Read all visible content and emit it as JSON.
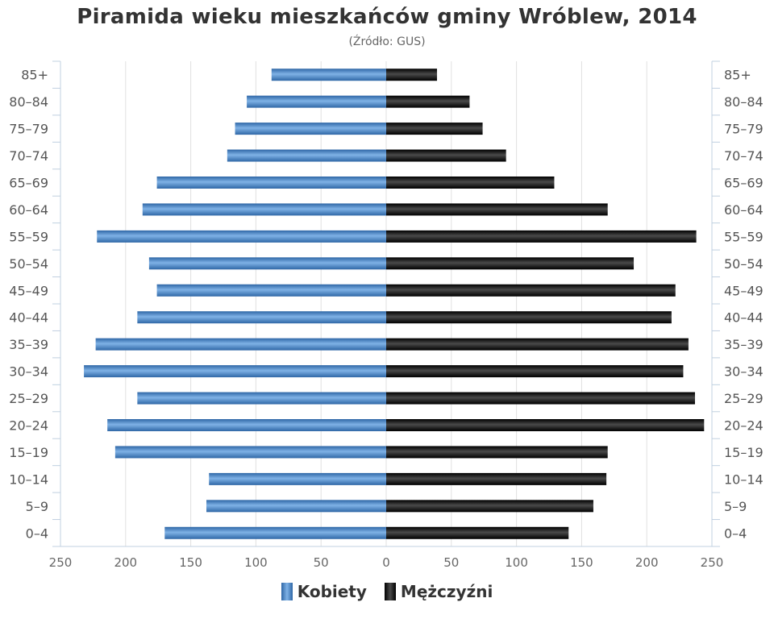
{
  "chart_data": {
    "type": "bar",
    "orientation": "horizontal",
    "title": "Piramida wieku mieszkańców gminy Wróblew, 2014",
    "subtitle": "(Źródło: GUS)",
    "categories": [
      "0–4",
      "5–9",
      "10–14",
      "15–19",
      "20–24",
      "25–29",
      "30–34",
      "35–39",
      "40–44",
      "45–49",
      "50–54",
      "55–59",
      "60–64",
      "65–69",
      "70–74",
      "75–79",
      "80–84",
      "85+"
    ],
    "series": [
      {
        "name": "Kobiety",
        "color": "#4a86c5",
        "values": [
          170,
          138,
          136,
          208,
          214,
          191,
          232,
          223,
          191,
          176,
          182,
          222,
          187,
          176,
          122,
          116,
          107,
          88
        ]
      },
      {
        "name": "Mężczyźni",
        "color": "#1a1a1a",
        "values": [
          140,
          159,
          169,
          170,
          244,
          237,
          228,
          232,
          219,
          222,
          190,
          238,
          170,
          129,
          92,
          74,
          64,
          39
        ]
      }
    ],
    "xticks": [
      "250",
      "200",
      "150",
      "100",
      "50",
      "0",
      "50",
      "100",
      "150",
      "200",
      "250"
    ],
    "xlim": [
      -250,
      250
    ],
    "grid": true,
    "legend_position": "bottom"
  }
}
